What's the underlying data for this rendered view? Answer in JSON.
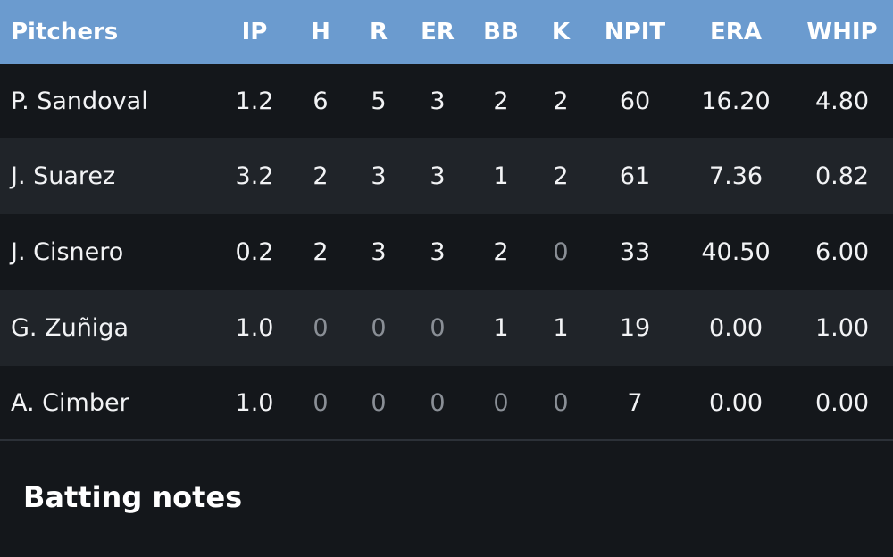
{
  "table": {
    "header": [
      "Pitchers",
      "IP",
      "H",
      "R",
      "ER",
      "BB",
      "K",
      "NPIT",
      "ERA",
      "WHIP"
    ],
    "rows": [
      [
        "P. Sandoval",
        "1.2",
        "6",
        "5",
        "3",
        "2",
        "2",
        "60",
        "16.20",
        "4.80"
      ],
      [
        "J. Suarez",
        "3.2",
        "2",
        "3",
        "3",
        "1",
        "2",
        "61",
        "7.36",
        "0.82"
      ],
      [
        "J. Cisnero",
        "0.2",
        "2",
        "3",
        "3",
        "2",
        "0",
        "33",
        "40.50",
        "6.00"
      ],
      [
        "G. Zuñiga",
        "1.0",
        "0",
        "0",
        "0",
        "1",
        "1",
        "19",
        "0.00",
        "1.00"
      ],
      [
        "A. Cimber",
        "1.0",
        "0",
        "0",
        "0",
        "0",
        "0",
        "7",
        "0.00",
        "0.00"
      ]
    ]
  },
  "section": {
    "title": "Batting notes"
  }
}
